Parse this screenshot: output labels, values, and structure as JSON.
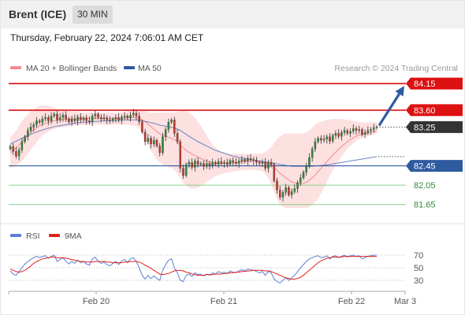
{
  "header": {
    "instrument": "Brent (ICE)",
    "timeframe": "30 MIN",
    "datetime": "Thursday, February 22, 2024 7:06:01 AM CET"
  },
  "legend": {
    "main": [
      {
        "label": "MA 20 + Bollinger Bands",
        "color": "#f08c8c"
      },
      {
        "label": "MA 50",
        "color": "#2e5aa0"
      }
    ],
    "rsi": [
      {
        "label": "RSI",
        "color": "#5b7fd6"
      },
      {
        "label": "9MA",
        "color": "#e0201b"
      }
    ]
  },
  "copyright": "Research © 2024 Trading Central",
  "colors": {
    "up": "#2e8b3a",
    "down": "#c0392b",
    "resistance": "#dd1111",
    "support_blue": "#2e5aa0",
    "support_green": "#8ccf8c",
    "band_fill": "#fde0e0",
    "ma20": "#f08c8c",
    "ma50": "#6b84c0",
    "current": "#333333",
    "arrow": "#2e5aa0"
  },
  "chart_data": [
    {
      "type": "candlestick",
      "x_tick_labels": [
        "Feb 20",
        "Feb 21",
        "Feb 22",
        "Mar 3"
      ],
      "x_tick_index": [
        26,
        74,
        122,
        145
      ],
      "ylim": [
        81.45,
        84.25
      ],
      "current_price": 83.25,
      "levels": [
        {
          "value": 84.15,
          "label": "84.15",
          "kind": "resistance",
          "style": "badge"
        },
        {
          "value": 83.6,
          "label": "83.60",
          "kind": "resistance",
          "style": "badge"
        },
        {
          "value": 83.25,
          "label": "83.25",
          "kind": "current",
          "style": "badge"
        },
        {
          "value": 82.45,
          "label": "82.45",
          "kind": "support_blue",
          "style": "badge"
        },
        {
          "value": 82.05,
          "label": "82.05",
          "kind": "support_green",
          "style": "text"
        },
        {
          "value": 81.65,
          "label": "81.65",
          "kind": "support_green",
          "style": "text"
        }
      ],
      "arrow_target": 84.15,
      "close": [
        82.85,
        82.75,
        82.65,
        82.78,
        82.95,
        83.05,
        83.18,
        83.25,
        83.3,
        83.38,
        83.35,
        83.42,
        83.45,
        83.38,
        83.48,
        83.52,
        83.4,
        83.45,
        83.5,
        83.42,
        83.36,
        83.42,
        83.38,
        83.46,
        83.4,
        83.44,
        83.38,
        83.36,
        83.48,
        83.52,
        83.45,
        83.42,
        83.44,
        83.4,
        83.38,
        83.42,
        83.45,
        83.4,
        83.46,
        83.48,
        83.44,
        83.5,
        83.54,
        83.48,
        83.36,
        83.15,
        82.95,
        83.02,
        82.9,
        82.98,
        82.86,
        82.72,
        83.05,
        83.2,
        83.35,
        83.4,
        83.12,
        82.95,
        82.4,
        82.25,
        82.48,
        82.52,
        82.42,
        82.55,
        82.48,
        82.5,
        82.44,
        82.5,
        82.46,
        82.52,
        82.48,
        82.54,
        82.5,
        82.52,
        82.48,
        82.56,
        82.52,
        82.5,
        82.55,
        82.58,
        82.54,
        82.6,
        82.58,
        82.56,
        82.52,
        82.5,
        82.52,
        82.4,
        82.52,
        82.48,
        82.14,
        81.95,
        81.8,
        81.9,
        82.0,
        81.85,
        81.92,
        81.98,
        82.1,
        82.2,
        82.32,
        82.45,
        82.62,
        82.8,
        82.95,
        83.02,
        82.98,
        83.0,
        83.05,
        82.96,
        83.08,
        83.12,
        83.06,
        83.14,
        83.18,
        83.12,
        83.16,
        83.22,
        83.18,
        83.2,
        83.1,
        83.14,
        83.18,
        83.2,
        83.24,
        83.25
      ],
      "ma20": [
        82.72,
        82.76,
        82.82,
        82.88,
        82.95,
        83.02,
        83.08,
        83.14,
        83.19,
        83.24,
        83.28,
        83.31,
        83.33,
        83.35,
        83.37,
        83.38,
        83.39,
        83.4,
        83.41,
        83.41,
        83.42,
        83.42,
        83.42,
        83.42,
        83.43,
        83.43,
        83.43,
        83.43,
        83.43,
        83.43,
        83.43,
        83.43,
        83.43,
        83.43,
        83.43,
        83.43,
        83.43,
        83.43,
        83.43,
        83.44,
        83.44,
        83.44,
        83.45,
        83.45,
        83.43,
        83.4,
        83.36,
        83.31,
        83.26,
        83.21,
        83.16,
        83.11,
        83.08,
        83.06,
        83.04,
        83.02,
        82.99,
        82.95,
        82.88,
        82.82,
        82.77,
        82.73,
        82.69,
        82.66,
        82.63,
        82.6,
        82.57,
        82.55,
        82.53,
        82.52,
        82.51,
        82.5,
        82.5,
        82.5,
        82.5,
        82.51,
        82.51,
        82.52,
        82.53,
        82.54,
        82.54,
        82.55,
        82.55,
        82.56,
        82.55,
        82.54,
        82.53,
        82.51,
        82.5,
        82.47,
        82.42,
        82.36,
        82.3,
        82.25,
        82.2,
        82.16,
        82.12,
        82.1,
        82.09,
        82.08,
        82.09,
        82.11,
        82.15,
        82.2,
        82.26,
        82.33,
        82.4,
        82.47,
        82.54,
        82.6,
        82.67,
        82.73,
        82.79,
        82.85,
        82.9,
        82.95,
        82.99,
        83.03,
        83.06,
        83.09,
        83.1,
        83.12,
        83.13,
        83.15,
        83.16,
        83.17
      ],
      "bb_upper": [
        83.05,
        83.1,
        83.18,
        83.28,
        83.38,
        83.45,
        83.52,
        83.58,
        83.62,
        83.66,
        83.69,
        83.7,
        83.7,
        83.69,
        83.67,
        83.65,
        83.63,
        83.61,
        83.6,
        83.59,
        83.58,
        83.57,
        83.57,
        83.56,
        83.56,
        83.55,
        83.55,
        83.55,
        83.55,
        83.55,
        83.55,
        83.55,
        83.55,
        83.55,
        83.55,
        83.55,
        83.55,
        83.55,
        83.56,
        83.57,
        83.58,
        83.6,
        83.62,
        83.63,
        83.62,
        83.6,
        83.58,
        83.56,
        83.55,
        83.55,
        83.55,
        83.55,
        83.55,
        83.55,
        83.55,
        83.55,
        83.55,
        83.56,
        83.58,
        83.6,
        83.58,
        83.55,
        83.5,
        83.44,
        83.36,
        83.28,
        83.18,
        83.08,
        82.98,
        82.88,
        82.82,
        82.77,
        82.74,
        82.72,
        82.71,
        82.7,
        82.7,
        82.7,
        82.7,
        82.7,
        82.7,
        82.7,
        82.7,
        82.7,
        82.7,
        82.7,
        82.71,
        82.74,
        82.78,
        82.84,
        82.92,
        83.0,
        83.06,
        83.1,
        83.12,
        83.12,
        83.12,
        83.12,
        83.12,
        83.12,
        83.12,
        83.14,
        83.18,
        83.24,
        83.3,
        83.34,
        83.36,
        83.38,
        83.4,
        83.41,
        83.42,
        83.42,
        83.42,
        83.42,
        83.41,
        83.4,
        83.39,
        83.38,
        83.37,
        83.36,
        83.35,
        83.35,
        83.35,
        83.35,
        83.35,
        83.35
      ],
      "bb_lower": [
        82.4,
        82.42,
        82.46,
        82.5,
        82.55,
        82.62,
        82.7,
        82.78,
        82.86,
        82.94,
        83.02,
        83.08,
        83.12,
        83.16,
        83.19,
        83.21,
        83.23,
        83.24,
        83.25,
        83.26,
        83.27,
        83.27,
        83.28,
        83.28,
        83.29,
        83.29,
        83.29,
        83.3,
        83.3,
        83.3,
        83.3,
        83.3,
        83.3,
        83.3,
        83.3,
        83.3,
        83.3,
        83.3,
        83.3,
        83.3,
        83.3,
        83.29,
        83.28,
        83.26,
        83.22,
        83.12,
        83.0,
        82.88,
        82.76,
        82.66,
        82.58,
        82.52,
        82.48,
        82.45,
        82.42,
        82.4,
        82.36,
        82.3,
        82.2,
        82.1,
        82.04,
        82.0,
        81.98,
        81.98,
        82.0,
        82.04,
        82.08,
        82.12,
        82.16,
        82.2,
        82.24,
        82.26,
        82.28,
        82.3,
        82.31,
        82.32,
        82.33,
        82.34,
        82.35,
        82.36,
        82.36,
        82.37,
        82.37,
        82.37,
        82.36,
        82.35,
        82.33,
        82.28,
        82.2,
        82.06,
        81.9,
        81.76,
        81.66,
        81.6,
        81.58,
        81.58,
        81.58,
        81.58,
        81.58,
        81.58,
        81.58,
        81.58,
        81.6,
        81.64,
        81.7,
        81.78,
        81.88,
        82.0,
        82.12,
        82.24,
        82.36,
        82.46,
        82.56,
        82.64,
        82.72,
        82.8,
        82.86,
        82.92,
        82.96,
        83.0,
        83.02,
        83.04,
        83.06,
        83.08,
        83.1,
        83.12
      ],
      "ma50": [
        82.9,
        82.93,
        82.96,
        82.99,
        83.02,
        83.05,
        83.08,
        83.1,
        83.13,
        83.15,
        83.17,
        83.19,
        83.21,
        83.23,
        83.24,
        83.26,
        83.27,
        83.28,
        83.29,
        83.3,
        83.31,
        83.32,
        83.33,
        83.34,
        83.34,
        83.35,
        83.35,
        83.36,
        83.36,
        83.37,
        83.37,
        83.38,
        83.38,
        83.38,
        83.39,
        83.39,
        83.39,
        83.39,
        83.39,
        83.4,
        83.4,
        83.4,
        83.4,
        83.4,
        83.39,
        83.38,
        83.37,
        83.36,
        83.34,
        83.33,
        83.31,
        83.29,
        83.28,
        83.27,
        83.26,
        83.25,
        83.23,
        83.21,
        83.18,
        83.14,
        83.1,
        83.06,
        83.02,
        82.99,
        82.95,
        82.92,
        82.89,
        82.86,
        82.83,
        82.8,
        82.77,
        82.75,
        82.73,
        82.71,
        82.69,
        82.67,
        82.65,
        82.64,
        82.62,
        82.61,
        82.6,
        82.59,
        82.58,
        82.57,
        82.56,
        82.55,
        82.54,
        82.53,
        82.52,
        82.51,
        82.5,
        82.49,
        82.48,
        82.47,
        82.46,
        82.45,
        82.44,
        82.44,
        82.44,
        82.44,
        82.44,
        82.44,
        82.44,
        82.44,
        82.45,
        82.45,
        82.46,
        82.46,
        82.47,
        82.48,
        82.49,
        82.5,
        82.51,
        82.52,
        82.53,
        82.54,
        82.55,
        82.56,
        82.57,
        82.58,
        82.59,
        82.6,
        82.61,
        82.62,
        82.63,
        82.64
      ]
    },
    {
      "type": "line",
      "ylim": [
        15,
        85
      ],
      "y_tick_labels": [
        "70",
        "50",
        "30"
      ],
      "y_tick_values": [
        70,
        50,
        30
      ],
      "series": [
        {
          "name": "RSI",
          "values": [
            45,
            40,
            38,
            44,
            50,
            56,
            60,
            63,
            66,
            68,
            66,
            68,
            69,
            65,
            68,
            70,
            60,
            63,
            66,
            60,
            56,
            60,
            57,
            62,
            58,
            60,
            56,
            54,
            64,
            67,
            60,
            57,
            59,
            55,
            53,
            57,
            60,
            55,
            61,
            63,
            58,
            64,
            66,
            60,
            50,
            38,
            32,
            38,
            33,
            37,
            33,
            30,
            46,
            55,
            62,
            64,
            50,
            42,
            30,
            28,
            38,
            40,
            36,
            42,
            39,
            40,
            37,
            40,
            38,
            42,
            40,
            44,
            42,
            43,
            41,
            45,
            43,
            42,
            45,
            47,
            45,
            48,
            47,
            46,
            44,
            42,
            44,
            38,
            44,
            42,
            32,
            28,
            26,
            30,
            34,
            30,
            34,
            38,
            44,
            50,
            55,
            60,
            64,
            66,
            68,
            69,
            66,
            67,
            69,
            64,
            68,
            69,
            66,
            68,
            70,
            67,
            69,
            70,
            68,
            69,
            64,
            66,
            68,
            69,
            70,
            70
          ]
        },
        {
          "name": "9MA",
          "values": [
            48,
            46,
            44,
            43,
            44,
            46,
            49,
            53,
            57,
            60,
            62,
            64,
            65,
            66,
            67,
            67,
            66,
            66,
            66,
            65,
            64,
            63,
            62,
            61,
            60,
            60,
            59,
            59,
            59,
            60,
            60,
            60,
            60,
            59,
            59,
            58,
            58,
            58,
            58,
            59,
            59,
            60,
            60,
            60,
            59,
            57,
            54,
            52,
            49,
            46,
            43,
            40,
            39,
            40,
            41,
            43,
            45,
            46,
            46,
            45,
            43,
            42,
            40,
            39,
            38,
            38,
            38,
            39,
            39,
            39,
            40,
            40,
            40,
            41,
            41,
            42,
            42,
            43,
            43,
            44,
            44,
            45,
            45,
            46,
            46,
            46,
            46,
            45,
            45,
            44,
            42,
            40,
            38,
            36,
            34,
            33,
            32,
            32,
            33,
            35,
            38,
            42,
            46,
            50,
            54,
            58,
            61,
            63,
            65,
            66,
            67,
            67,
            67,
            67,
            68,
            68,
            68,
            68,
            68,
            68,
            68,
            68,
            68,
            68,
            68,
            68
          ]
        }
      ]
    }
  ]
}
